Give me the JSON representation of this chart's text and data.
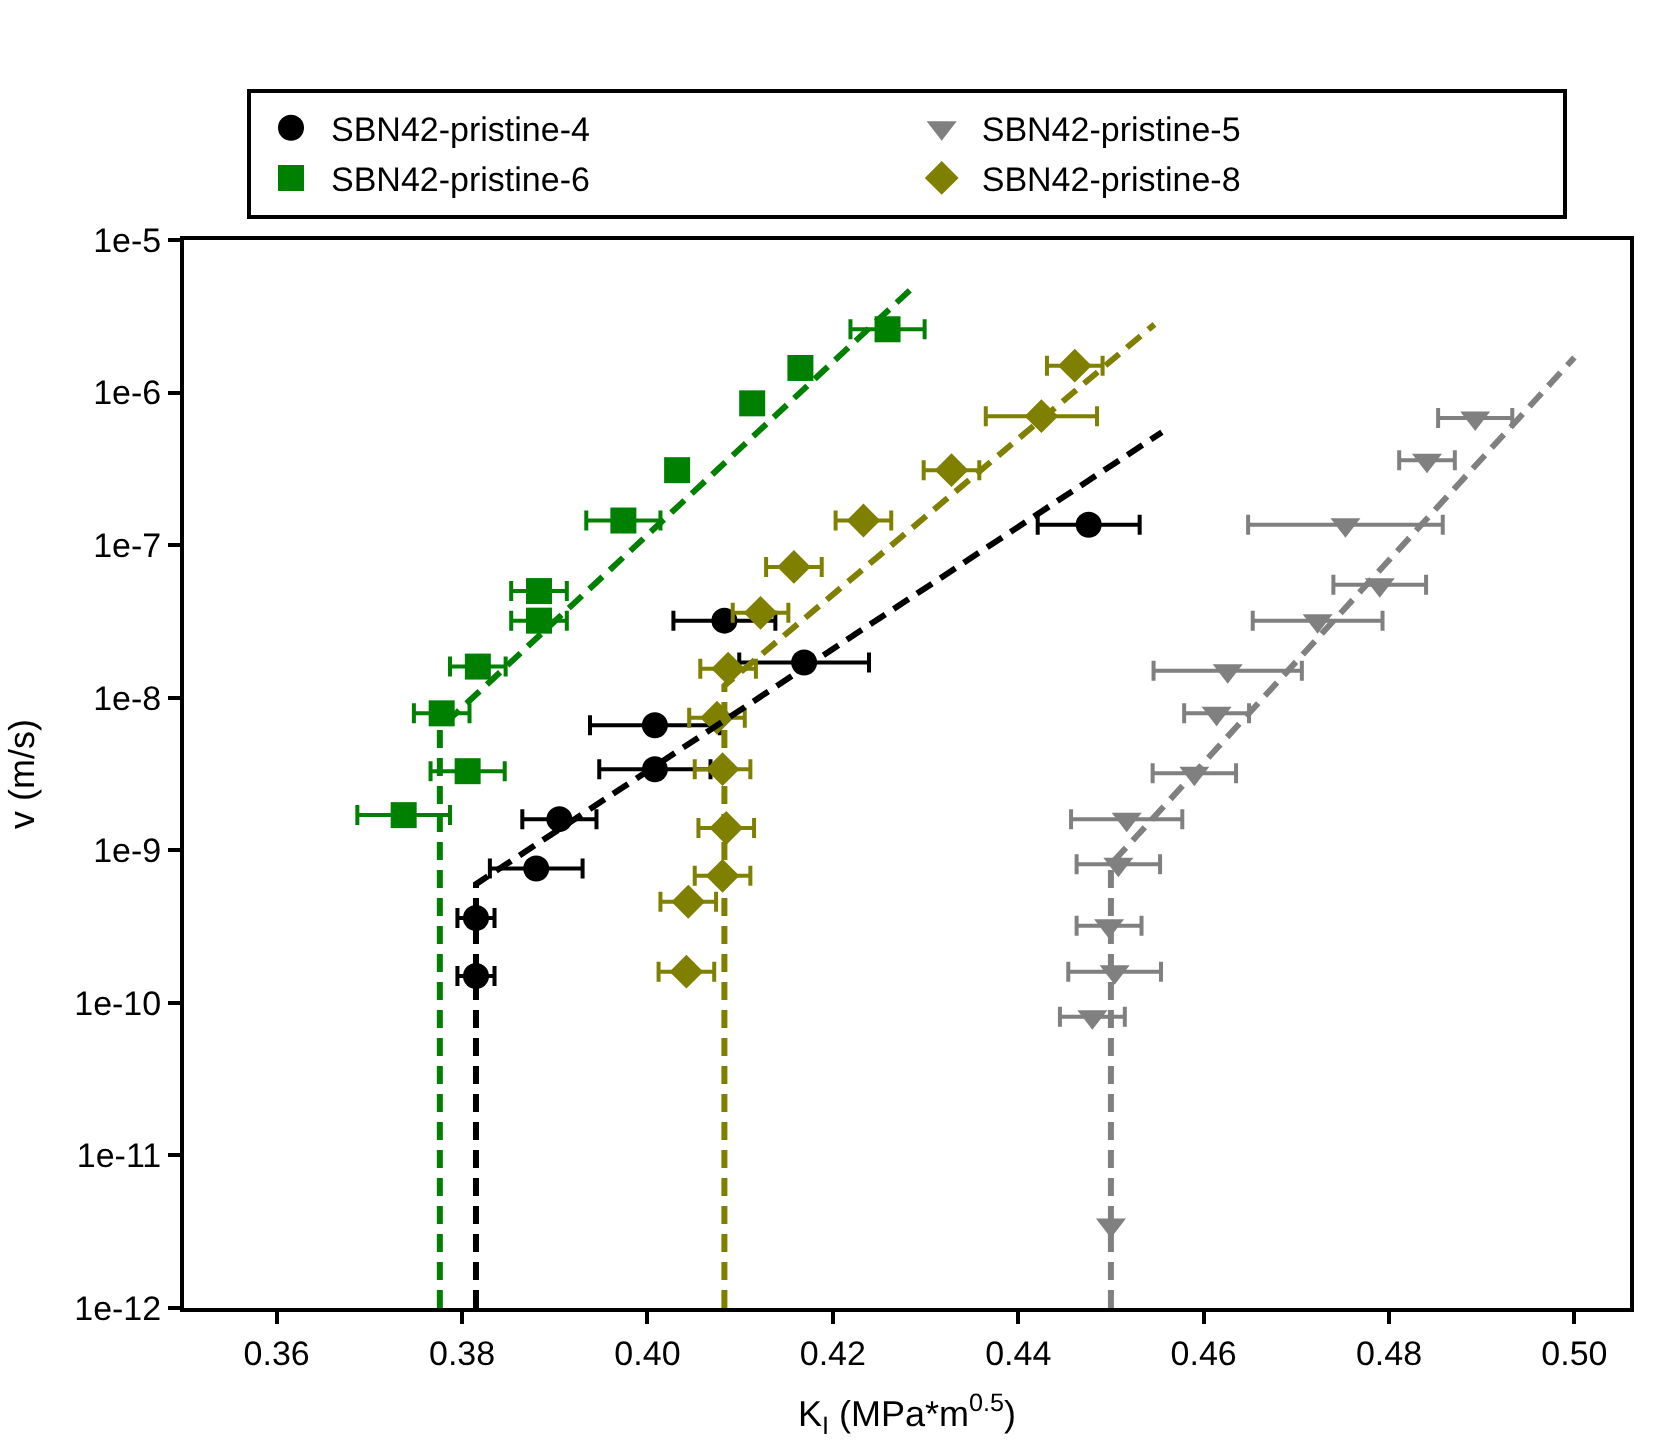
{
  "chart_data": {
    "type": "scatter",
    "xlabel": "K$_{I}$ (MPa*m$^{0.5}$)",
    "ylabel": "v (m/s)",
    "xlim": [
      0.35,
      0.506
    ],
    "ylim": [
      1e-12,
      1e-05
    ],
    "log": "y",
    "legend": "top",
    "xticks": [
      0.36,
      0.38,
      {
        "value": 0.4,
        "label": "0.40"
      },
      0.42,
      0.44,
      0.46,
      0.48,
      {
        "value": 0.5,
        "label": "0.50"
      }
    ],
    "yticks": [
      {
        "value": 1e-12,
        "label": "1e-12"
      },
      {
        "value": 1e-11,
        "label": "1e-11"
      },
      {
        "value": 1e-10,
        "label": "1e-10"
      },
      {
        "value": 1e-09,
        "label": "1e-9"
      },
      {
        "value": 1e-08,
        "label": "1e-8"
      },
      {
        "value": 1e-07,
        "label": "1e-7"
      },
      {
        "value": 1e-06,
        "label": "1e-6"
      },
      {
        "value": 1e-05,
        "label": "1e-5"
      }
    ],
    "series": [
      {
        "name": "SBN42-pristine-4",
        "color": "#000000",
        "marker": "circle",
        "x": [
          0.3815,
          0.3815,
          0.388,
          0.3905,
          0.4008,
          0.4008,
          0.4169,
          0.4083,
          0.4476
        ],
        "values": [
          1.5e-10,
          3.6e-10,
          7.6e-10,
          1.6e-09,
          3.4e-09,
          6.6e-09,
          1.7e-08,
          3.2e-08,
          1.36e-07
        ],
        "xerrors": [
          0.002,
          0.002,
          0.005,
          0.004,
          0.006,
          0.007,
          0.007,
          0.0055,
          0.0055
        ]
      },
      {
        "name": "SBN42-pristine-5",
        "color": "#808080",
        "marker": "triangle",
        "x": [
          0.4893,
          0.4841,
          0.4753,
          0.479,
          0.4723,
          0.4626,
          0.4614,
          0.459,
          0.4517,
          0.4508,
          0.4498,
          0.4504,
          0.448,
          0.45
        ],
        "values": [
          6.8e-07,
          3.6e-07,
          1.36e-07,
          5.5e-08,
          3.2e-08,
          1.5e-08,
          7.9e-09,
          3.2e-09,
          1.6e-09,
          8.1e-10,
          3.2e-10,
          1.6e-10,
          8.1e-11,
          3.5e-12
        ],
        "xerrors": [
          0.004,
          0.003,
          0.0105,
          0.005,
          0.007,
          0.008,
          0.0035,
          0.0045,
          0.006,
          0.0045,
          0.0035,
          0.005,
          0.0035,
          null
        ]
      },
      {
        "name": "SBN42-pristine-6",
        "color": "#008000",
        "marker": "square",
        "x": [
          0.3737,
          0.3778,
          0.3806,
          0.3817,
          0.3883,
          0.3883,
          0.3974,
          0.4032,
          0.4113,
          0.4165,
          0.4259
        ],
        "values": [
          1.7e-09,
          7.9e-09,
          3.3e-09,
          1.6e-08,
          3.2e-08,
          5e-08,
          1.45e-07,
          3.1e-07,
          8.5e-07,
          1.45e-06,
          2.6e-06
        ],
        "xerrors": [
          0.005,
          0.003,
          0.004,
          0.003,
          0.003,
          0.003,
          0.004,
          null,
          null,
          null,
          0.004
        ]
      },
      {
        "name": "SBN42-pristine-8",
        "color": "#808000",
        "marker": "diamond",
        "x": [
          0.4042,
          0.4044,
          0.4081,
          0.4085,
          0.4081,
          0.4075,
          0.4087,
          0.4122,
          0.4158,
          0.4233,
          0.4328,
          0.4425,
          0.4461
        ],
        "values": [
          1.6e-10,
          4.6e-10,
          6.8e-10,
          1.4e-09,
          3.4e-09,
          7.4e-09,
          1.55e-08,
          3.6e-08,
          7.2e-08,
          1.45e-07,
          3.1e-07,
          7e-07,
          1.5e-06
        ],
        "xerrors": [
          0.003,
          0.003,
          0.003,
          0.003,
          0.003,
          0.003,
          0.003,
          0.003,
          0.003,
          0.003,
          0.003,
          0.006,
          0.003
        ]
      },
      {
        "type": "line",
        "color": "#000000",
        "line_style": "dashed",
        "marker": "none",
        "x": [
          0.3815,
          0.3815,
          0.4555
        ],
        "values": [
          1e-12,
          6e-10,
          5.5e-07
        ]
      },
      {
        "type": "line",
        "color": "#808080",
        "line_style": "dashed",
        "marker": "none",
        "x": [
          0.45,
          0.45,
          0.5
        ],
        "values": [
          1e-12,
          8.1e-10,
          1.7e-06
        ]
      },
      {
        "type": "line",
        "color": "#008000",
        "line_style": "dashed",
        "marker": "none",
        "x": [
          0.3776,
          0.3776,
          0.4285
        ],
        "values": [
          1e-12,
          6.3e-09,
          4.8e-06
        ]
      },
      {
        "type": "line",
        "color": "#808000",
        "line_style": "dashed",
        "marker": "none",
        "x": [
          0.4083,
          0.4083,
          0.4547
        ],
        "values": [
          1e-12,
          1.2e-08,
          2.8e-06
        ]
      }
    ]
  }
}
